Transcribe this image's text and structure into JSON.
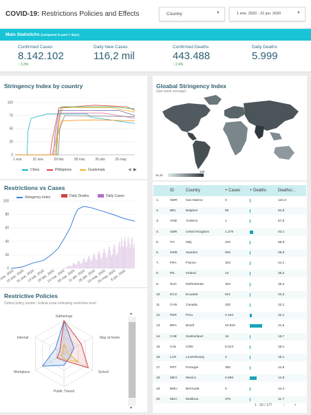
{
  "header": {
    "title_bold": "COVID-19:",
    "title_rest": " Restrictions Policies and Effects",
    "country_label": "Country",
    "date_range": "1 ene. 2020 - 22 jun. 2020"
  },
  "stats": {
    "label": "Main Statistichs",
    "label_note": "(compared to past 7 days)",
    "kpis": [
      {
        "label": "Confirmed Cases",
        "value": "8.142.102",
        "delta": "↑ 3.3%"
      },
      {
        "label": "Daily New Cases",
        "value": "116,2 mil",
        "delta": ""
      },
      {
        "label": "Confirmed Deaths",
        "value": "443.488",
        "delta": "↑ 2.4%"
      },
      {
        "label": "Daily Deaths",
        "value": "5.999",
        "delta": ""
      }
    ]
  },
  "stringency": {
    "title": "Stringency Index by country",
    "chart_data": {
      "type": "line",
      "ylim": [
        0,
        100
      ],
      "yticks": [
        "0",
        "25",
        "50",
        "75",
        "100"
      ],
      "xticks": [
        "1 ene.",
        "31 ene.",
        "29 feb.",
        "28 mar.",
        "26 abr.",
        "25 may."
      ],
      "legend": [
        "China",
        "Philippines",
        "Guatemala"
      ],
      "series_colors": [
        "#19b3c3",
        "#e0433a",
        "#f0b429",
        "#7b5ea7",
        "#3fa34d",
        "#e27bb1",
        "#7f7f7f",
        "#ff8a00"
      ]
    }
  },
  "global": {
    "title": "Gloabal Stringency Index",
    "subtitle": "(last week average)",
    "scale_min": "11,11",
    "scale_max": "100"
  },
  "restrictions": {
    "title": "Restrictions vs Cases",
    "legend": [
      "Stringency Index",
      "Daily Deaths",
      "Daily Cases"
    ],
    "colors": [
      "#3b7dd8",
      "#d0443f",
      "#b06fc6"
    ],
    "chart_data": {
      "type": "line",
      "ylim": [
        0,
        100
      ],
      "yticks": [
        "0",
        "20",
        "40",
        "60",
        "80",
        "100"
      ],
      "xticks": [
        "1 ene. 2020",
        "15 ene. 2020",
        "31 ene. 2020",
        "14 feb. 2020",
        "29 feb. 2020",
        "14 mar. 2020",
        "28 mar. 2020",
        "11 abr. 2020",
        "26 abr. 2020",
        "10 may. 2020",
        "25 may. 2020",
        "8 jun. 2020"
      ]
    }
  },
  "policies": {
    "title": "Restrictive Policies",
    "subtitle": "Oxford policy tracker: ordinal scale indicating restrictive level",
    "axes": [
      "Gatherings",
      "Stay at home",
      "School",
      "Public Transit",
      "Workplace",
      "Internal"
    ]
  },
  "table": {
    "headers": [
      "ID",
      "Country",
      "+ Cases",
      "+ Deaths",
      "Deaths/..."
    ],
    "rows": [
      {
        "n": "1.",
        "id": "SMR",
        "country": "San Marino",
        "cases": "0",
        "deaths": 0,
        "rate": "124,3"
      },
      {
        "n": "2.",
        "id": "BEL",
        "country": "Belgium",
        "cases": "55",
        "deaths": 1,
        "rate": "84,6"
      },
      {
        "n": "3.",
        "id": "AND",
        "country": "Andorra",
        "cases": "1",
        "deaths": 0,
        "rate": "67,5"
      },
      {
        "n": "4.",
        "id": "GBR",
        "country": "United Kingdom",
        "cases": "1.279",
        "deaths": 5,
        "rate": "63,1"
      },
      {
        "n": "5.",
        "id": "ITA",
        "country": "Italy",
        "cases": "210",
        "deaths": 1,
        "rate": "56,9"
      },
      {
        "n": "6.",
        "id": "SWE",
        "country": "Sweden",
        "cases": "940",
        "deaths": 1,
        "rate": "48,5"
      },
      {
        "n": "7.",
        "id": "FRA",
        "country": "France",
        "cases": "344",
        "deaths": 1,
        "rate": "44,1"
      },
      {
        "n": "8.",
        "id": "IRL",
        "country": "Ireland",
        "cases": "13",
        "deaths": 1,
        "rate": "35,2"
      },
      {
        "n": "9.",
        "id": "NLD",
        "country": "Netherlands",
        "cases": "304",
        "deaths": 1,
        "rate": "35,2"
      },
      {
        "n": "10.",
        "id": "ECU",
        "country": "Ecuador",
        "cases": "621",
        "deaths": 1,
        "rate": "23,2"
      },
      {
        "n": "11.",
        "id": "CAN",
        "country": "Canada",
        "cases": "320",
        "deaths": 1,
        "rate": "22,1"
      },
      {
        "n": "12.",
        "id": "PER",
        "country": "Peru",
        "cases": "4.164",
        "deaths": 3,
        "rate": "22,1"
      },
      {
        "n": "13.",
        "id": "BRA",
        "country": "Brazil",
        "cases": "34.918",
        "deaths": 18,
        "rate": "21,6"
      },
      {
        "n": "14.",
        "id": "CHE",
        "country": "Switzerland",
        "cases": "15",
        "deaths": 1,
        "rate": "19,7"
      },
      {
        "n": "15.",
        "id": "CHL",
        "country": "Chile",
        "cases": "5.013",
        "deaths": 1,
        "rate": "18,1"
      },
      {
        "n": "16.",
        "id": "LUX",
        "country": "Luxembourg",
        "cases": "3",
        "deaths": 1,
        "rate": "18,1"
      },
      {
        "n": "17.",
        "id": "PRT",
        "country": "Portugal",
        "cases": "300",
        "deaths": 1,
        "rate": "14,8"
      },
      {
        "n": "18.",
        "id": "MEX",
        "country": "Mexico",
        "cases": "4.599",
        "deaths": 10,
        "rate": "14,5"
      },
      {
        "n": "19.",
        "id": "BMU",
        "country": "Bermuda",
        "cases": "0",
        "deaths": 1,
        "rate": "14,4"
      },
      {
        "n": "20.",
        "id": "MDA",
        "country": "Moldova",
        "cases": "375",
        "deaths": 1,
        "rate": "11,7"
      }
    ],
    "pager": "1 - 20 / 177"
  }
}
